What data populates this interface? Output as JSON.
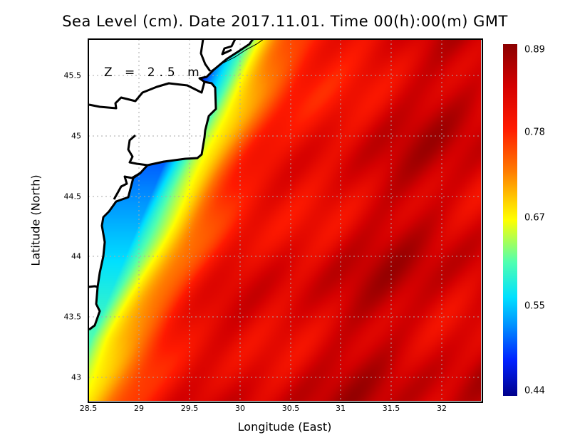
{
  "title": "Sea Level (cm). Date 2017.11.01. Time 00(h):00(m) GMT",
  "annotation": "Z = 2.5 m",
  "chart_data": {
    "type": "heatmap",
    "title": "Sea Level (cm). Date 2017.11.01. Time 00(h):00(m) GMT",
    "xlabel": "Longitude (East)",
    "ylabel": "Latitude (North)",
    "xlim": [
      28.5,
      32.4
    ],
    "ylim": [
      42.8,
      45.8
    ],
    "xticks": [
      "28.5",
      "29",
      "29.5",
      "30",
      "30.5",
      "31",
      "31.5",
      "32"
    ],
    "yticks": [
      "45.5",
      "45",
      "44.5",
      "44",
      "43.5",
      "43"
    ],
    "grid": true,
    "colorbar": {
      "ticks": [
        "0.89",
        "0.78",
        "0.67",
        "0.55",
        "0.44"
      ],
      "min": 0.44,
      "max": 0.89,
      "placement": "right"
    }
  }
}
